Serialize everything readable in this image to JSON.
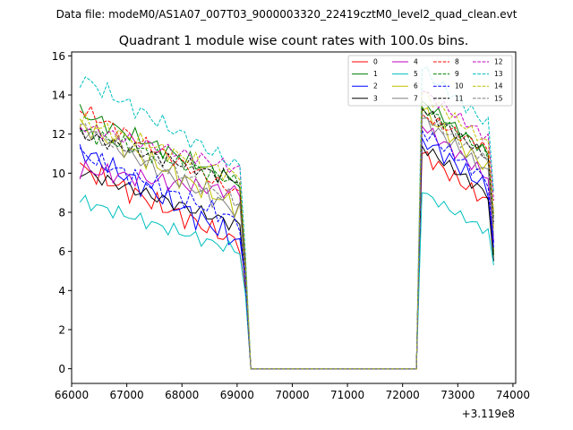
{
  "header": {
    "datafile": "Data file: modeM0/AS1A07_007T03_9000003320_22419cztM0_level2_quad_clean.evt"
  },
  "chart_data": {
    "type": "line",
    "title": "Quadrant 1 module wise count rates with 100.0s bins.",
    "xlabel": "",
    "ylabel": "",
    "x_offset_label": "+3.119e8",
    "xlim": [
      66000,
      74050
    ],
    "ylim": [
      -0.75,
      16.2
    ],
    "x_ticks": [
      66000,
      67000,
      68000,
      69000,
      70000,
      71000,
      72000,
      73000,
      74000
    ],
    "x_tick_labels": [
      "66000",
      "67000",
      "68000",
      "69000",
      "70000",
      "71000",
      "72000",
      "73000",
      "74000"
    ],
    "y_ticks": [
      0,
      2,
      4,
      6,
      8,
      10,
      12,
      14,
      16
    ],
    "y_tick_labels": [
      "0",
      "2",
      "4",
      "6",
      "8",
      "10",
      "12",
      "14",
      "16"
    ],
    "segment1": {
      "x_start": 66150,
      "x_end": 69050,
      "step": 100
    },
    "gap": {
      "x_start": 69250,
      "x_end": 72250,
      "value": 0
    },
    "segment2": {
      "x_start": 72350,
      "x_end": 73650,
      "step": 100
    },
    "legend": {
      "location": "top-right",
      "columns": 4
    },
    "series": [
      {
        "name": "0",
        "color": "#ff0000",
        "dash": "solid",
        "v_start": 10.3,
        "v_end": 6.4,
        "v_drop": 4.0,
        "peak": 11.0,
        "v2_end": 8.5,
        "v_last": 6.0,
        "wobble": 0.4
      },
      {
        "name": "1",
        "color": "#008000",
        "dash": "solid",
        "v_start": 13.1,
        "v_end": 9.5,
        "v_drop": 5.5,
        "peak": 13.7,
        "v2_end": 11.0,
        "v_last": 5.8,
        "wobble": 0.3
      },
      {
        "name": "2",
        "color": "#0000ff",
        "dash": "solid",
        "v_start": 11.2,
        "v_end": 6.5,
        "v_drop": 4.5,
        "peak": 11.8,
        "v2_end": 9.2,
        "v_last": 6.2,
        "wobble": 0.45
      },
      {
        "name": "3",
        "color": "#000000",
        "dash": "solid",
        "v_start": 10.1,
        "v_end": 7.3,
        "v_drop": 4.3,
        "peak": 11.4,
        "v2_end": 8.9,
        "v_last": 5.5,
        "wobble": 0.3
      },
      {
        "name": "4",
        "color": "#bf00bf",
        "dash": "solid",
        "v_start": 10.2,
        "v_end": 9.0,
        "v_drop": 4.8,
        "peak": 12.4,
        "v2_end": 9.8,
        "v_last": 6.5,
        "wobble": 0.35
      },
      {
        "name": "5",
        "color": "#00bfbf",
        "dash": "solid",
        "v_start": 8.6,
        "v_end": 6.0,
        "v_drop": 3.8,
        "peak": 9.0,
        "v2_end": 7.0,
        "v_last": 5.3,
        "wobble": 0.25
      },
      {
        "name": "6",
        "color": "#bfbf00",
        "dash": "solid",
        "v_start": 12.5,
        "v_end": 8.2,
        "v_drop": 4.6,
        "peak": 13.2,
        "v2_end": 10.2,
        "v_last": 7.2,
        "wobble": 0.4
      },
      {
        "name": "7",
        "color": "#808080",
        "dash": "solid",
        "v_start": 12.3,
        "v_end": 8.0,
        "v_drop": 4.5,
        "peak": 12.8,
        "v2_end": 10.0,
        "v_last": 6.8,
        "wobble": 0.35
      },
      {
        "name": "8",
        "color": "#ff0000",
        "dash": "dashed",
        "v_start": 13.3,
        "v_end": 8.9,
        "v_drop": 5.0,
        "peak": 13.0,
        "v2_end": 11.2,
        "v_last": 8.0,
        "wobble": 0.3
      },
      {
        "name": "9",
        "color": "#008000",
        "dash": "dashed",
        "v_start": 12.2,
        "v_end": 9.5,
        "v_drop": 5.2,
        "peak": 13.4,
        "v2_end": 11.0,
        "v_last": 7.8,
        "wobble": 0.3
      },
      {
        "name": "10",
        "color": "#0000ff",
        "dash": "dashed",
        "v_start": 11.0,
        "v_end": 7.5,
        "v_drop": 4.4,
        "peak": 12.2,
        "v2_end": 9.6,
        "v_last": 6.4,
        "wobble": 0.35
      },
      {
        "name": "11",
        "color": "#000000",
        "dash": "dashed",
        "v_start": 12.0,
        "v_end": 9.6,
        "v_drop": 5.0,
        "peak": 13.3,
        "v2_end": 10.8,
        "v_last": 7.5,
        "wobble": 0.3
      },
      {
        "name": "12",
        "color": "#bf00bf",
        "dash": "dashed",
        "v_start": 12.4,
        "v_end": 10.2,
        "v_drop": 5.5,
        "peak": 14.2,
        "v2_end": 11.8,
        "v_last": 8.6,
        "wobble": 0.3
      },
      {
        "name": "13",
        "color": "#00bfbf",
        "dash": "dashed",
        "v_start": 14.9,
        "v_end": 10.3,
        "v_drop": 6.0,
        "peak": 15.3,
        "v2_end": 12.5,
        "v_last": 9.0,
        "wobble": 0.35
      },
      {
        "name": "14",
        "color": "#bfbf00",
        "dash": "dashed",
        "v_start": 12.7,
        "v_end": 9.8,
        "v_drop": 5.6,
        "peak": 14.1,
        "v2_end": 11.5,
        "v_last": 7.9,
        "wobble": 0.3
      },
      {
        "name": "15",
        "color": "#808080",
        "dash": "dashed",
        "v_start": 12.4,
        "v_end": 8.5,
        "v_drop": 4.9,
        "peak": 13.0,
        "v2_end": 10.6,
        "v_last": 7.4,
        "wobble": 0.3
      }
    ]
  }
}
